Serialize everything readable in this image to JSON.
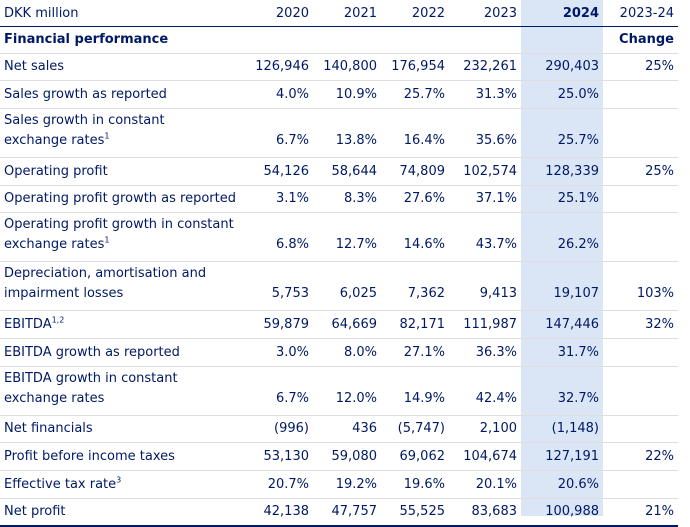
{
  "header": {
    "label": "DKK million",
    "years": [
      "2020",
      "2021",
      "2022",
      "2023",
      "2024"
    ],
    "change_period": "2023-24"
  },
  "section": {
    "title": "Financial performance",
    "change_label": "Change"
  },
  "rows": [
    {
      "l1": "Net sales",
      "l2": "",
      "sup": "",
      "v": [
        "126,946",
        "140,800",
        "176,954",
        "232,261",
        "290,403"
      ],
      "chg": "25%"
    },
    {
      "l1": "Sales growth as reported",
      "l2": "",
      "sup": "",
      "v": [
        "4.0%",
        "10.9%",
        "25.7%",
        "31.3%",
        "25.0%"
      ],
      "chg": ""
    },
    {
      "l1": "Sales growth in constant",
      "l2": "exchange rates",
      "sup": "1",
      "v": [
        "6.7%",
        "13.8%",
        "16.4%",
        "35.6%",
        "25.7%"
      ],
      "chg": ""
    },
    {
      "l1": "Operating profit",
      "l2": "",
      "sup": "",
      "v": [
        "54,126",
        "58,644",
        "74,809",
        "102,574",
        "128,339"
      ],
      "chg": "25%"
    },
    {
      "l1": "Operating profit growth as reported",
      "l2": "",
      "sup": "",
      "v": [
        "3.1%",
        "8.3%",
        "27.6%",
        "37.1%",
        "25.1%"
      ],
      "chg": ""
    },
    {
      "l1": "Operating profit growth in constant",
      "l2": "exchange rates",
      "sup": "1",
      "v": [
        "6.8%",
        "12.7%",
        "14.6%",
        "43.7%",
        "26.2%"
      ],
      "chg": ""
    },
    {
      "l1": "Depreciation, amortisation and",
      "l2": "impairment losses",
      "sup": "",
      "v": [
        "5,753",
        "6,025",
        "7,362",
        "9,413",
        "19,107"
      ],
      "chg": "103%"
    },
    {
      "l1": "EBITDA",
      "l2": "",
      "sup": "1,2",
      "v": [
        "59,879",
        "64,669",
        "82,171",
        "111,987",
        "147,446"
      ],
      "chg": "32%"
    },
    {
      "l1": "EBITDA growth as reported",
      "l2": "",
      "sup": "",
      "v": [
        "3.0%",
        "8.0%",
        "27.1%",
        "36.3%",
        "31.7%"
      ],
      "chg": ""
    },
    {
      "l1": "EBITDA growth in constant",
      "l2": "exchange rates",
      "sup": "",
      "v": [
        "6.7%",
        "12.0%",
        "14.9%",
        "42.4%",
        "32.7%"
      ],
      "chg": ""
    },
    {
      "l1": "Net financials",
      "l2": "",
      "sup": "",
      "v": [
        "(996)",
        "436",
        "(5,747)",
        "2,100",
        "(1,148)"
      ],
      "chg": ""
    },
    {
      "l1": "Profit before income taxes",
      "l2": "",
      "sup": "",
      "v": [
        "53,130",
        "59,080",
        "69,062",
        "104,674",
        "127,191"
      ],
      "chg": "22%"
    },
    {
      "l1": "Effective tax rate",
      "l2": "",
      "sup": "3",
      "v": [
        "20.7%",
        "19.2%",
        "19.6%",
        "20.1%",
        "20.6%"
      ],
      "chg": ""
    },
    {
      "l1": "Net profit",
      "l2": "",
      "sup": "",
      "v": [
        "42,138",
        "47,757",
        "55,525",
        "83,683",
        "100,988"
      ],
      "chg": "21%"
    }
  ]
}
